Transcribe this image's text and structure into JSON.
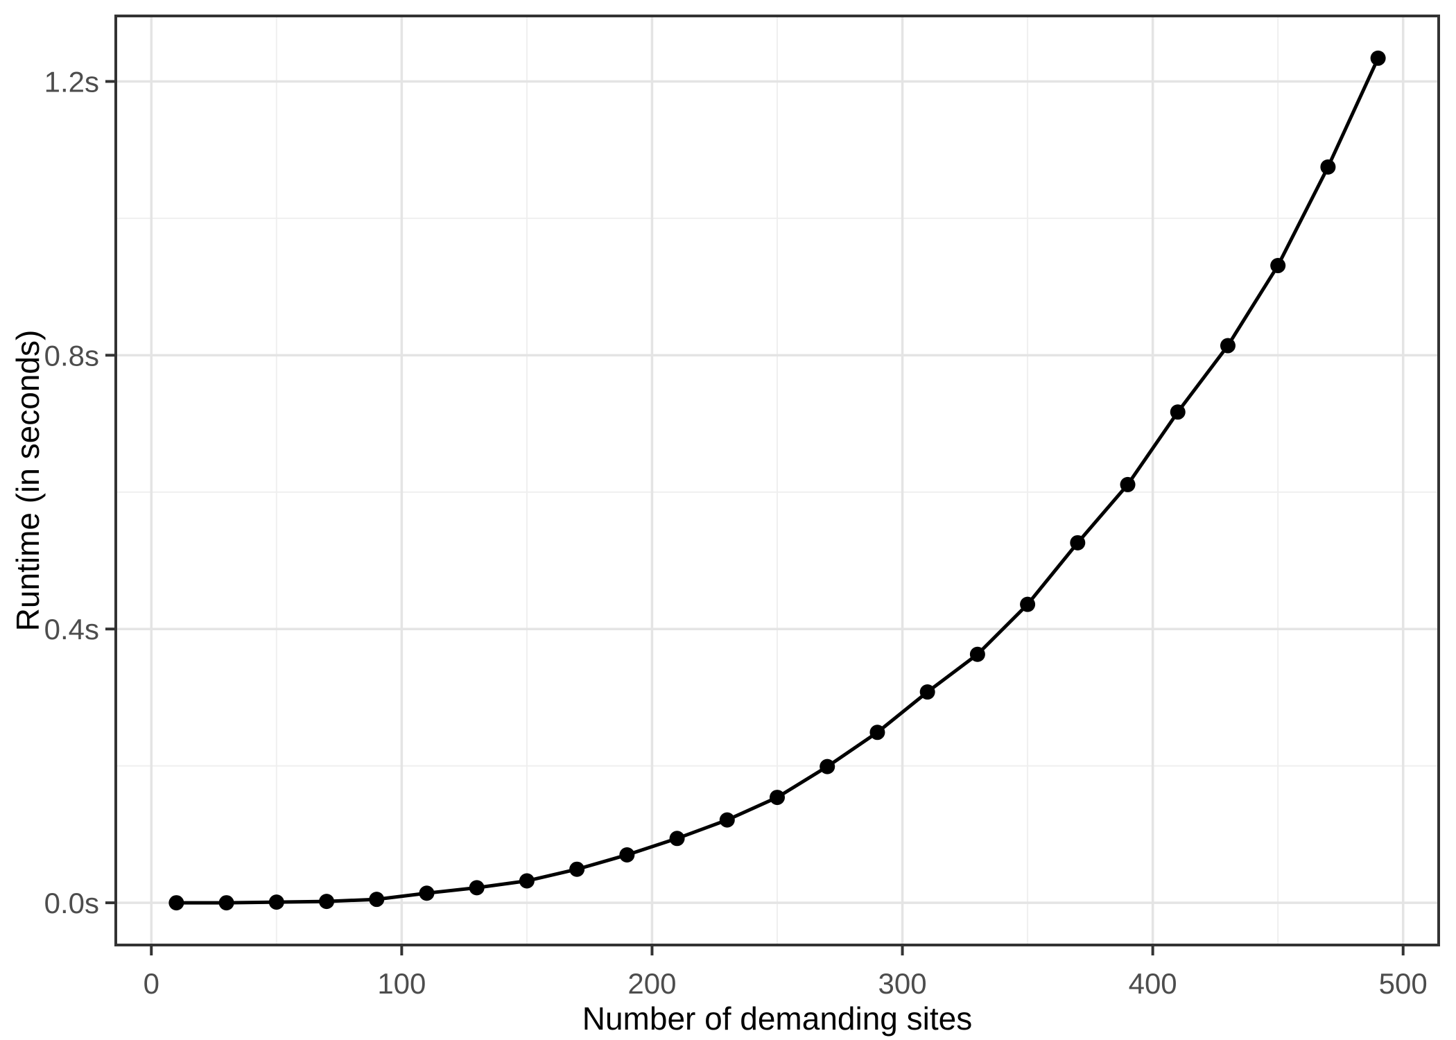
{
  "chart_data": {
    "type": "line",
    "title": "",
    "xlabel": "Number of demanding sites",
    "ylabel": "Runtime (in seconds)",
    "x": [
      10,
      30,
      50,
      70,
      90,
      110,
      130,
      150,
      170,
      190,
      210,
      230,
      250,
      270,
      290,
      310,
      330,
      350,
      370,
      390,
      410,
      430,
      450,
      470,
      490
    ],
    "series": [
      {
        "name": "runtime",
        "values": [
          0.0,
          0.0,
          0.001,
          0.002,
          0.005,
          0.014,
          0.022,
          0.032,
          0.049,
          0.07,
          0.094,
          0.121,
          0.154,
          0.199,
          0.249,
          0.308,
          0.363,
          0.436,
          0.526,
          0.611,
          0.717,
          0.814,
          0.931,
          1.075,
          1.234
        ]
      }
    ],
    "x_ticks": {
      "values": [
        0,
        100,
        200,
        300,
        400,
        500
      ],
      "labels": [
        "0",
        "100",
        "200",
        "300",
        "400",
        "500"
      ]
    },
    "y_ticks": {
      "values": [
        0.0,
        0.4,
        0.8,
        1.2
      ],
      "labels": [
        "0.0s",
        "0.4s",
        "0.8s",
        "1.2s"
      ]
    },
    "x_minor_ticks": [
      50,
      150,
      250,
      350,
      450
    ],
    "y_minor_ticks": [
      0.2,
      0.6,
      1.0
    ],
    "xlim": [
      -14.2,
      514.2
    ],
    "ylim": [
      -0.0617,
      1.2957
    ],
    "grid": "major-and-minor",
    "legend_position": "none",
    "marker": "filled-circle",
    "style": {
      "line_color": "#000000",
      "point_color": "#000000",
      "panel_border_color": "#333333",
      "tick_color": "#333333",
      "tick_label_color": "#4d4d4d",
      "axis_title_color": "#000000",
      "major_grid_color": "#e4e4e4",
      "minor_grid_color": "#efefef",
      "panel_background": "#ffffff",
      "figure_background": "#ffffff"
    }
  }
}
